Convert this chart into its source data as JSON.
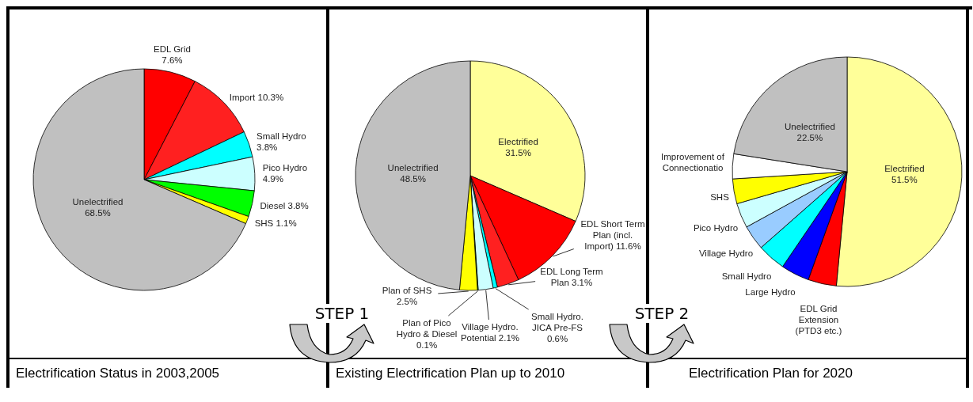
{
  "chart_data": [
    {
      "type": "pie",
      "title": "Electrification Status in 2003,2005",
      "annotations": [
        "STEP 1"
      ],
      "categories": [
        "EDL Grid",
        "Import",
        "Small Hydro",
        "Pico Hydro",
        "Diesel",
        "SHS",
        "Unelectrified"
      ],
      "values": [
        7.6,
        10.3,
        3.8,
        4.9,
        3.8,
        1.1,
        68.5
      ],
      "value_labels": [
        "7.6%",
        "10.3%",
        "3.8%",
        "4.9%",
        "3.8%",
        "1.1%",
        "68.5%"
      ],
      "colors": [
        "#ff0000",
        "#ff2020",
        "#00ffff",
        "#ccffff",
        "#00ff00",
        "#ffff00",
        "#c0c0c0"
      ]
    },
    {
      "type": "pie",
      "title": "Existing Electrification Plan up to 2010",
      "annotations": [
        "STEP 2"
      ],
      "categories": [
        "Electrified",
        "EDL Short Term Plan (incl. Import)",
        "EDL Long Term Plan",
        "Small Hydro. JICA Pre-FS",
        "Village Hydro. Potential",
        "Plan of Pico Hydro & Diesel",
        "Plan of SHS",
        "Unelectrified"
      ],
      "values": [
        31.5,
        11.6,
        3.1,
        0.6,
        2.1,
        0.1,
        2.5,
        48.5
      ],
      "value_labels": [
        "31.5%",
        "11.6%",
        "3.1%",
        "0.6%",
        "2.1%",
        "0.1%",
        "2.5%",
        "48.5%"
      ],
      "colors": [
        "#ffff99",
        "#ff0000",
        "#ff2020",
        "#00ffff",
        "#ccffff",
        "#00ff00",
        "#ffff00",
        "#c0c0c0"
      ]
    },
    {
      "type": "pie",
      "title": "Electrification Plan for 2020",
      "categories": [
        "Electrified",
        "EDL Grid Extension (PTD3 etc.)",
        "Large Hydro",
        "Small Hydro",
        "Village Hydro",
        "Pico Hydro",
        "SHS",
        "Improvement of Connectionatio",
        "Unelectrified"
      ],
      "values": [
        51.5,
        4,
        4,
        4,
        3.5,
        3.5,
        3.5,
        3.5,
        22.5
      ],
      "value_labels": [
        "51.5%",
        null,
        null,
        null,
        null,
        null,
        null,
        null,
        "22.5%"
      ],
      "colors": [
        "#ffff99",
        "#ff0000",
        "#0000ff",
        "#00ffff",
        "#99ccff",
        "#ccffff",
        "#ffff00",
        "#ffffff",
        "#c0c0c0"
      ]
    }
  ]
}
